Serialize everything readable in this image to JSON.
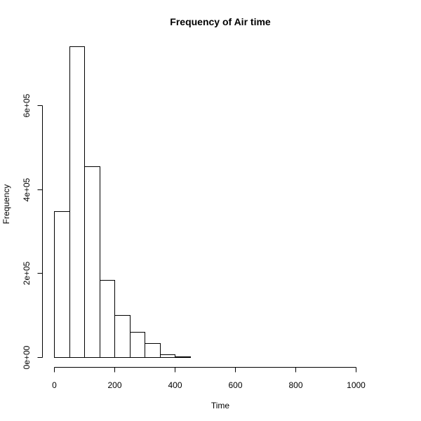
{
  "chart_data": {
    "type": "bar",
    "title": "Frequency of Air time",
    "xlabel": "Time",
    "ylabel": "Frequency",
    "bin_width": 50,
    "bins": [
      {
        "start": 0,
        "end": 50,
        "count": 347000
      },
      {
        "start": 50,
        "end": 100,
        "count": 740000
      },
      {
        "start": 100,
        "end": 150,
        "count": 455000
      },
      {
        "start": 150,
        "end": 200,
        "count": 183000
      },
      {
        "start": 200,
        "end": 250,
        "count": 100000
      },
      {
        "start": 250,
        "end": 300,
        "count": 60000
      },
      {
        "start": 300,
        "end": 350,
        "count": 33000
      },
      {
        "start": 350,
        "end": 400,
        "count": 7000
      },
      {
        "start": 400,
        "end": 450,
        "count": 1500
      },
      {
        "start": 450,
        "end": 500,
        "count": 800
      },
      {
        "start": 500,
        "end": 550,
        "count": 400
      },
      {
        "start": 550,
        "end": 600,
        "count": 50
      },
      {
        "start": 600,
        "end": 650,
        "count": 20
      },
      {
        "start": 650,
        "end": 700,
        "count": 10
      },
      {
        "start": 700,
        "end": 750,
        "count": 5
      },
      {
        "start": 750,
        "end": 800,
        "count": 5
      },
      {
        "start": 800,
        "end": 850,
        "count": 3
      },
      {
        "start": 850,
        "end": 900,
        "count": 2
      },
      {
        "start": 900,
        "end": 950,
        "count": 2
      },
      {
        "start": 950,
        "end": 1000,
        "count": 1
      },
      {
        "start": 1000,
        "end": 1050,
        "count": 1
      },
      {
        "start": 1050,
        "end": 1100,
        "count": 1
      }
    ],
    "xlim": [
      0,
      1100
    ],
    "ylim": [
      0,
      750000
    ],
    "x_ticks": [
      0,
      200,
      400,
      600,
      800,
      1000
    ],
    "x_tick_labels": [
      "0",
      "200",
      "400",
      "600",
      "800",
      "1000"
    ],
    "y_ticks": [
      0,
      200000,
      400000,
      600000
    ],
    "y_tick_labels": [
      "0e+00",
      "2e+05",
      "4e+05",
      "6e+05"
    ],
    "grid": false,
    "legend": "none"
  }
}
